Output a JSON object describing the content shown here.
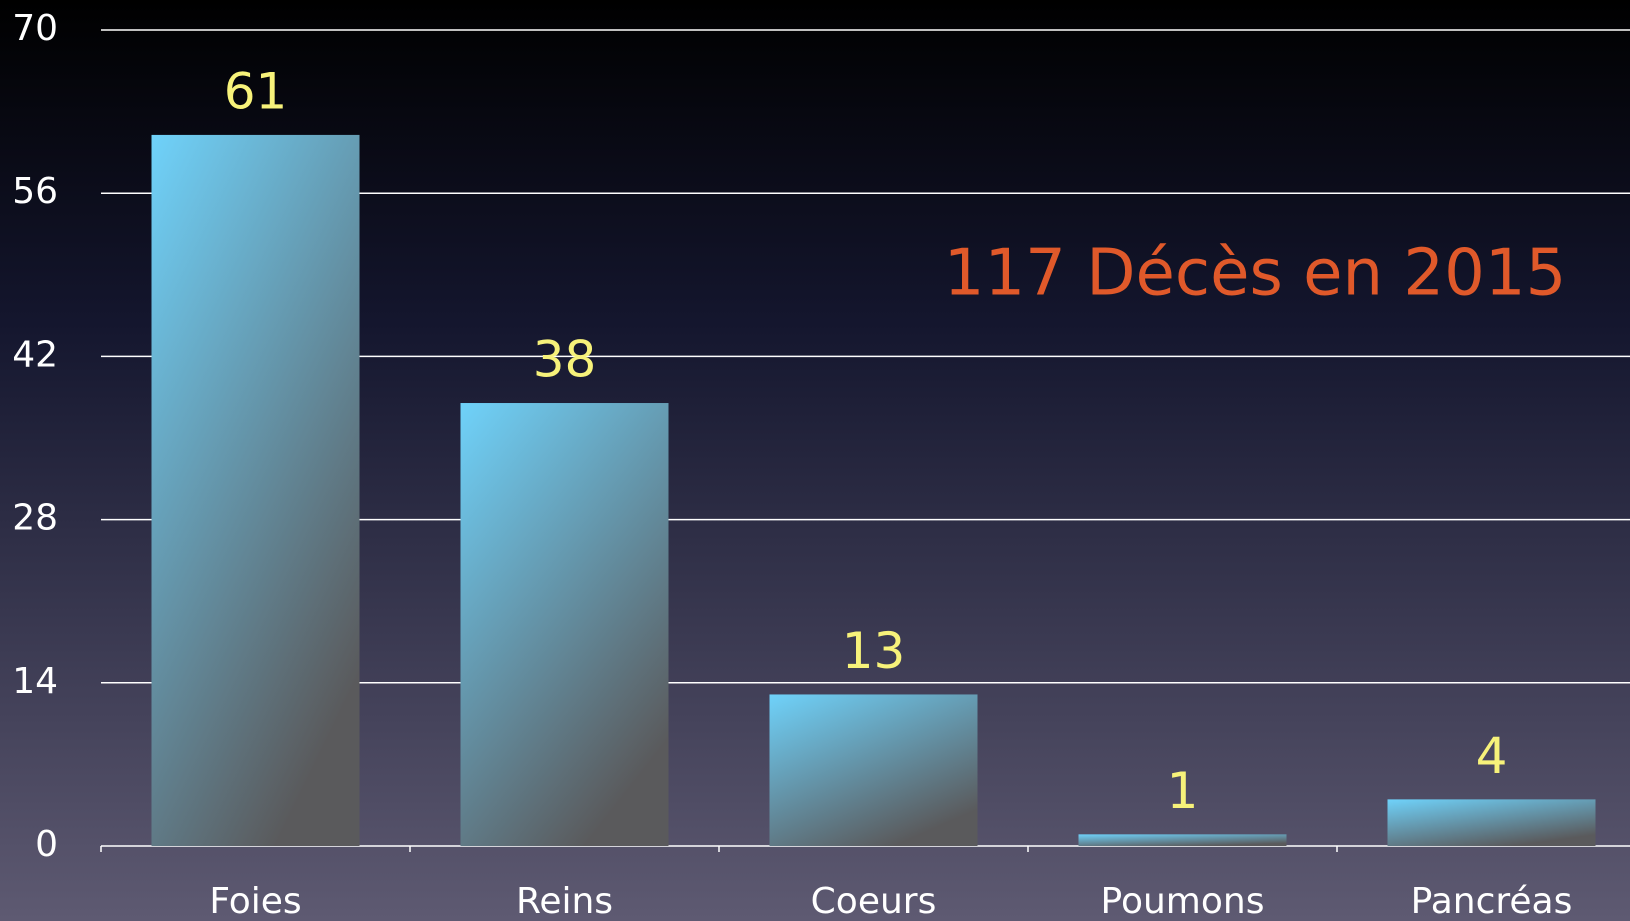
{
  "chart_data": {
    "type": "bar",
    "annotation": "117 Décès en 2015",
    "categories": [
      "Foies",
      "Reins",
      "Coeurs",
      "Poumons",
      "Pancréas"
    ],
    "values": [
      61,
      38,
      13,
      1,
      4
    ],
    "color": "#6fd2fa",
    "ylim": [
      0,
      70
    ],
    "yticks": [
      0,
      14,
      28,
      42,
      56,
      70
    ],
    "grid": true
  }
}
